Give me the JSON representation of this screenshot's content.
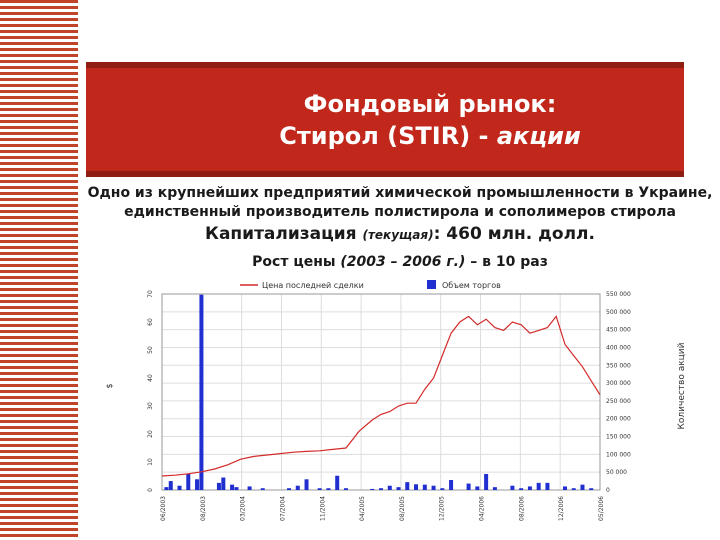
{
  "slide": {
    "title_line1": "Фондовый рынок:",
    "title_line2_prefix": "Стирол (STIR) - ",
    "title_line2_italic": "акции",
    "subtitle_line1": "Одно из крупнейших предприятий химической промышленности в Украине,",
    "subtitle_line2": "единственный производитель полистирола и сополимеров стирола",
    "cap_label": "Капитализация",
    "cap_qualifier": "(текущая)",
    "cap_value": ": 460 млн. долл.",
    "growth_label": "Рост цены",
    "growth_period": "(2003 – 2006 г.)",
    "growth_value": "– в 10 раз"
  },
  "colors": {
    "stripe": "#c0442a",
    "title_bg": "#c1271a",
    "title_border": "#8f1d12",
    "price_line": "#d42a2a",
    "volume_bar": "#1f2fd0",
    "grid": "#dddddd"
  },
  "chart_data": {
    "type": "line",
    "legend_position": "top",
    "grid": true,
    "series": [
      {
        "name": "Цена последней сделки",
        "type": "line",
        "axis": "left"
      },
      {
        "name": "Объем торгов",
        "type": "bar",
        "axis": "right"
      }
    ],
    "x_ticks": [
      "06/2003",
      "08/2003",
      "03/2004",
      "07/2004",
      "11/2004",
      "04/2005",
      "08/2005",
      "12/2005",
      "04/2006",
      "08/2006",
      "12/2006",
      "05/2006"
    ],
    "x_range": [
      0,
      100
    ],
    "left_axis": {
      "label": "$",
      "range": [
        0,
        70
      ],
      "ticks": [
        "0",
        "10",
        "20",
        "30",
        "40",
        "50",
        "60",
        "70"
      ]
    },
    "right_axis": {
      "label": "Количество акций",
      "range": [
        0,
        550000
      ],
      "ticks": [
        "0",
        "50 000",
        "100 000",
        "150 000",
        "200 000",
        "250 000",
        "300 000",
        "350 000",
        "400 000",
        "450 000",
        "500 000",
        "550 000"
      ]
    },
    "price": {
      "x": [
        0,
        3,
        6,
        9,
        12,
        15,
        18,
        21,
        24,
        27,
        30,
        33,
        36,
        39,
        42,
        45,
        48,
        50,
        52,
        54,
        56,
        58,
        60,
        62,
        64,
        66,
        68,
        70,
        72,
        74,
        76,
        78,
        80,
        82,
        84,
        86,
        88,
        90,
        92,
        94,
        96,
        98,
        100
      ],
      "y": [
        5,
        5.3,
        5.8,
        6.5,
        7.5,
        9,
        11,
        12,
        12.5,
        13,
        13.5,
        13.8,
        14,
        14.5,
        15,
        21,
        25,
        27,
        28,
        30,
        31,
        31,
        36,
        40,
        48,
        56,
        60,
        62,
        59,
        61,
        58,
        57,
        60,
        59,
        56,
        57,
        58,
        62,
        52,
        48,
        44,
        39,
        34
      ]
    },
    "volume": {
      "x": [
        1,
        2,
        4,
        6,
        8,
        9,
        13,
        14,
        16,
        17,
        20,
        23,
        29,
        31,
        33,
        36,
        38,
        40,
        42,
        48,
        50,
        52,
        54,
        56,
        58,
        60,
        62,
        64,
        66,
        70,
        72,
        74,
        76,
        80,
        82,
        84,
        86,
        88,
        92,
        94,
        96,
        98
      ],
      "y": [
        8000,
        25000,
        12000,
        45000,
        30000,
        548000,
        20000,
        35000,
        15000,
        8000,
        10000,
        5000,
        5000,
        12000,
        30000,
        5000,
        5000,
        40000,
        5000,
        3000,
        5000,
        12000,
        8000,
        22000,
        16000,
        15000,
        12000,
        5000,
        28000,
        18000,
        10000,
        45000,
        8000,
        12000,
        5000,
        10000,
        20000,
        20000,
        10000,
        5000,
        15000,
        5000
      ]
    }
  }
}
